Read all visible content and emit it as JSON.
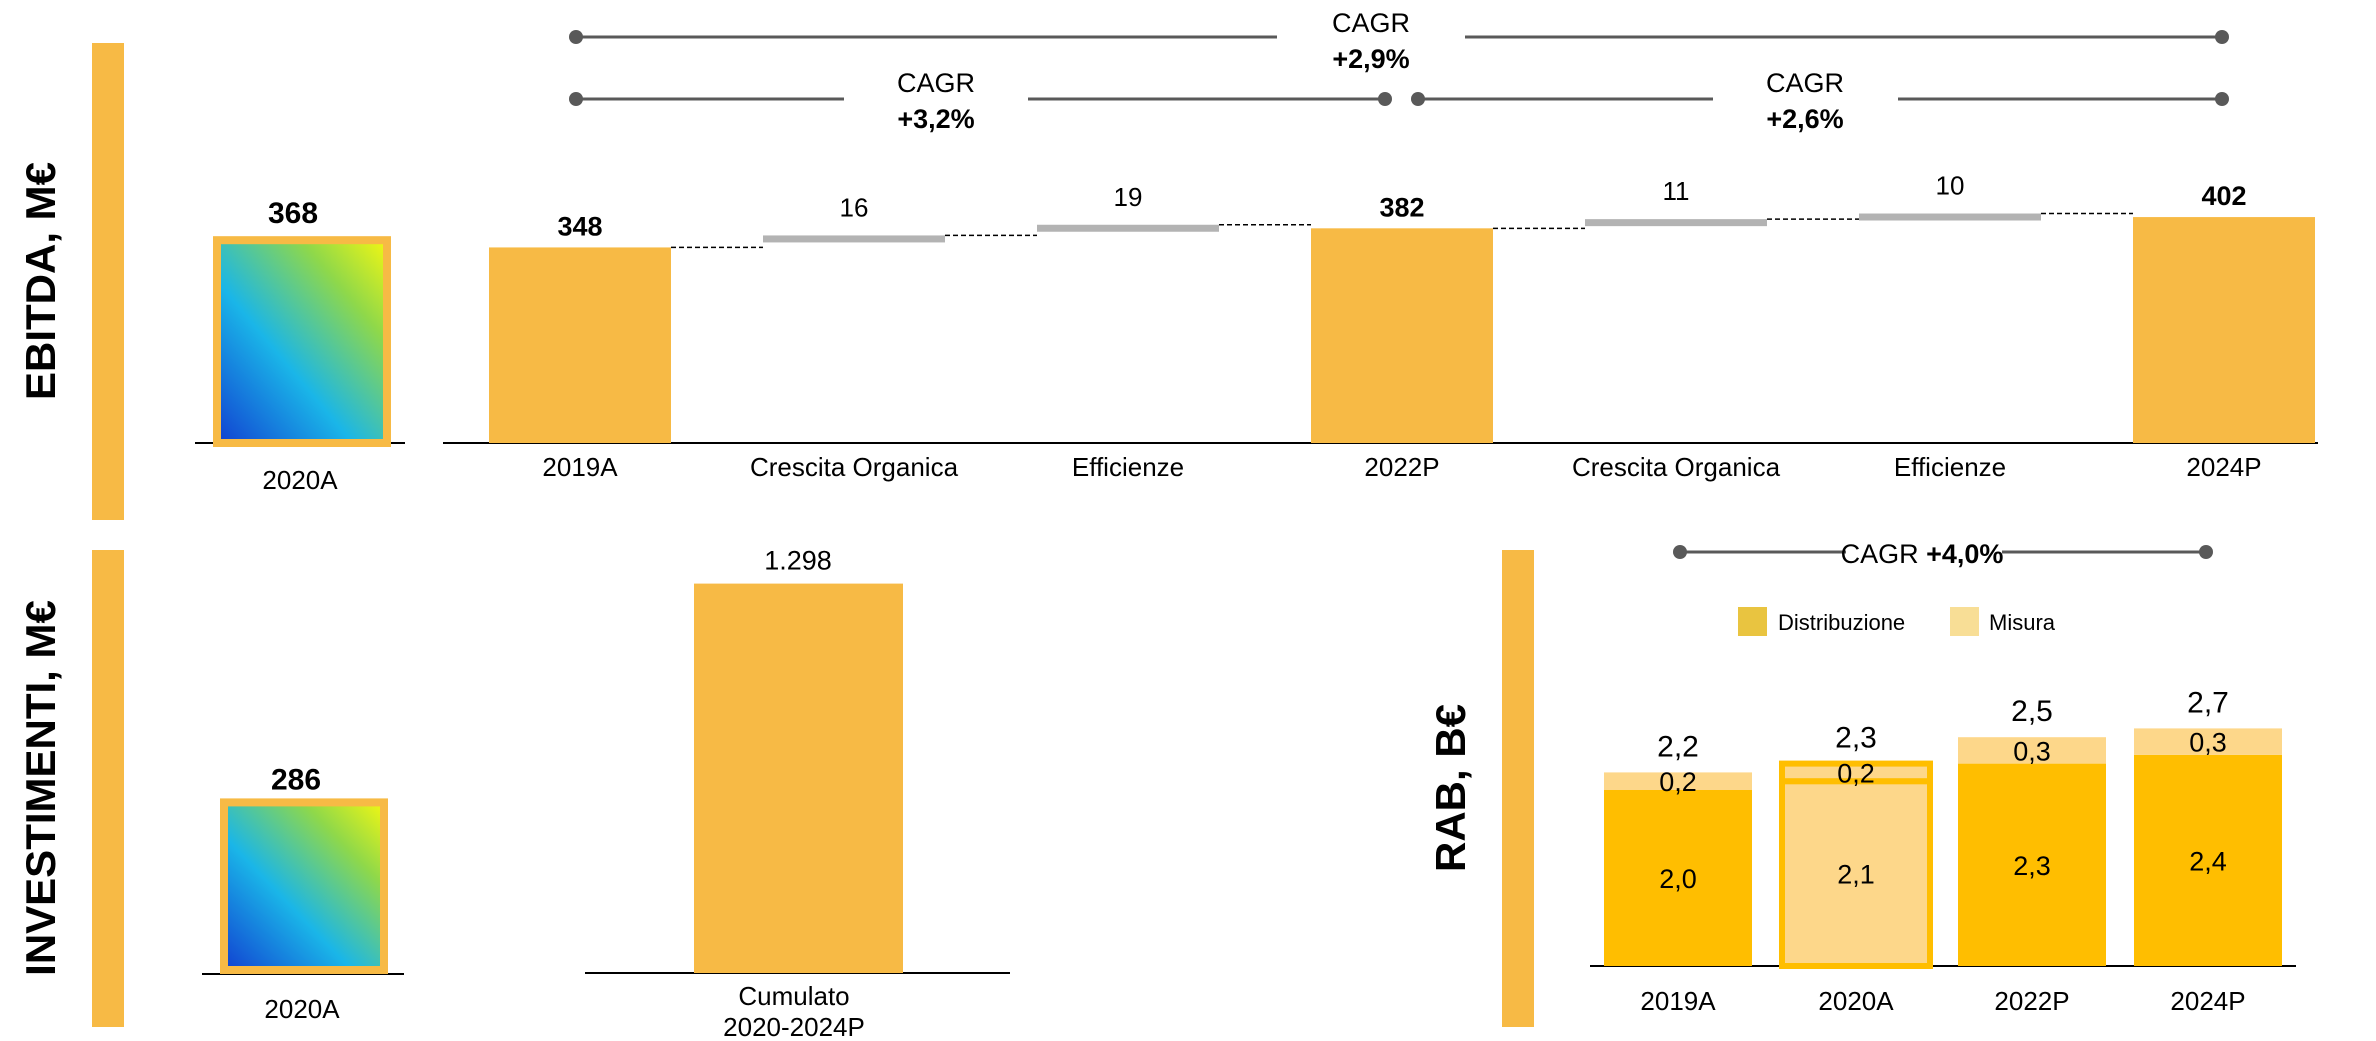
{
  "colors": {
    "accent": "#F7BA45",
    "side_bar": "#F7BA45",
    "step": "#B3B3B3",
    "rab_main": "#FFBE00",
    "rab_misura": "#FDD78A",
    "legend_distribuzione": "#E9C440",
    "legend_misura": "#F8DE96",
    "cagr_line": "#595959"
  },
  "sections": {
    "ebitda": "EBITDA, M€",
    "investimenti": "INVESTIMENTI, M€",
    "rab": "RAB, B€"
  },
  "chart_data": [
    {
      "id": "ebitda-2020",
      "type": "bar",
      "categories": [
        "2020A"
      ],
      "values": [
        368
      ],
      "value_labels": [
        "368"
      ],
      "highlight": "gradient"
    },
    {
      "id": "ebitda-bridge",
      "type": "bar",
      "subtype": "waterfall",
      "categories": [
        "2019A",
        "Crescita Organica",
        "Efficienze",
        "2022P",
        "Crescita Organica",
        "Efficienze",
        "2024P"
      ],
      "values": [
        348,
        16,
        19,
        382,
        11,
        10,
        402
      ],
      "kinds": [
        "total",
        "step",
        "step",
        "total",
        "step",
        "step",
        "total"
      ],
      "value_labels": [
        "348",
        "16",
        "19",
        "382",
        "11",
        "10",
        "402"
      ],
      "cagr": [
        {
          "label": "CAGR",
          "value": "+2,9%",
          "from": "2019A",
          "to": "2024P"
        },
        {
          "label": "CAGR",
          "value": "+3,2%",
          "from": "2019A",
          "to": "2022P"
        },
        {
          "label": "CAGR",
          "value": "+2,6%",
          "from": "2022P",
          "to": "2024P"
        }
      ]
    },
    {
      "id": "investimenti-2020",
      "type": "bar",
      "categories": [
        "2020A"
      ],
      "values": [
        286
      ],
      "value_labels": [
        "286"
      ],
      "highlight": "gradient"
    },
    {
      "id": "investimenti-cumulato",
      "type": "bar",
      "categories": [
        "Cumulato 2020-2024P"
      ],
      "category_lines": [
        [
          "Cumulato",
          "2020-2024P"
        ]
      ],
      "values": [
        1298
      ],
      "value_labels": [
        "1.298"
      ]
    },
    {
      "id": "rab",
      "type": "bar",
      "subtype": "stacked",
      "categories": [
        "2019A",
        "2020A",
        "2022P",
        "2024P"
      ],
      "series": [
        {
          "name": "Distribuzione",
          "values": [
            2.0,
            2.1,
            2.3,
            2.4
          ],
          "labels": [
            "2,0",
            "2,1",
            "2,3",
            "2,4"
          ]
        },
        {
          "name": "Misura",
          "values": [
            0.2,
            0.2,
            0.3,
            0.3
          ],
          "labels": [
            "0,2",
            "0,2",
            "0,3",
            "0,3"
          ]
        }
      ],
      "totals": [
        "2,2",
        "2,3",
        "2,5",
        "2,7"
      ],
      "highlight_category": "2020A",
      "legend": "top",
      "cagr": {
        "label": "CAGR",
        "value": "+4,0%",
        "from": "2019A",
        "to": "2024P"
      }
    }
  ]
}
